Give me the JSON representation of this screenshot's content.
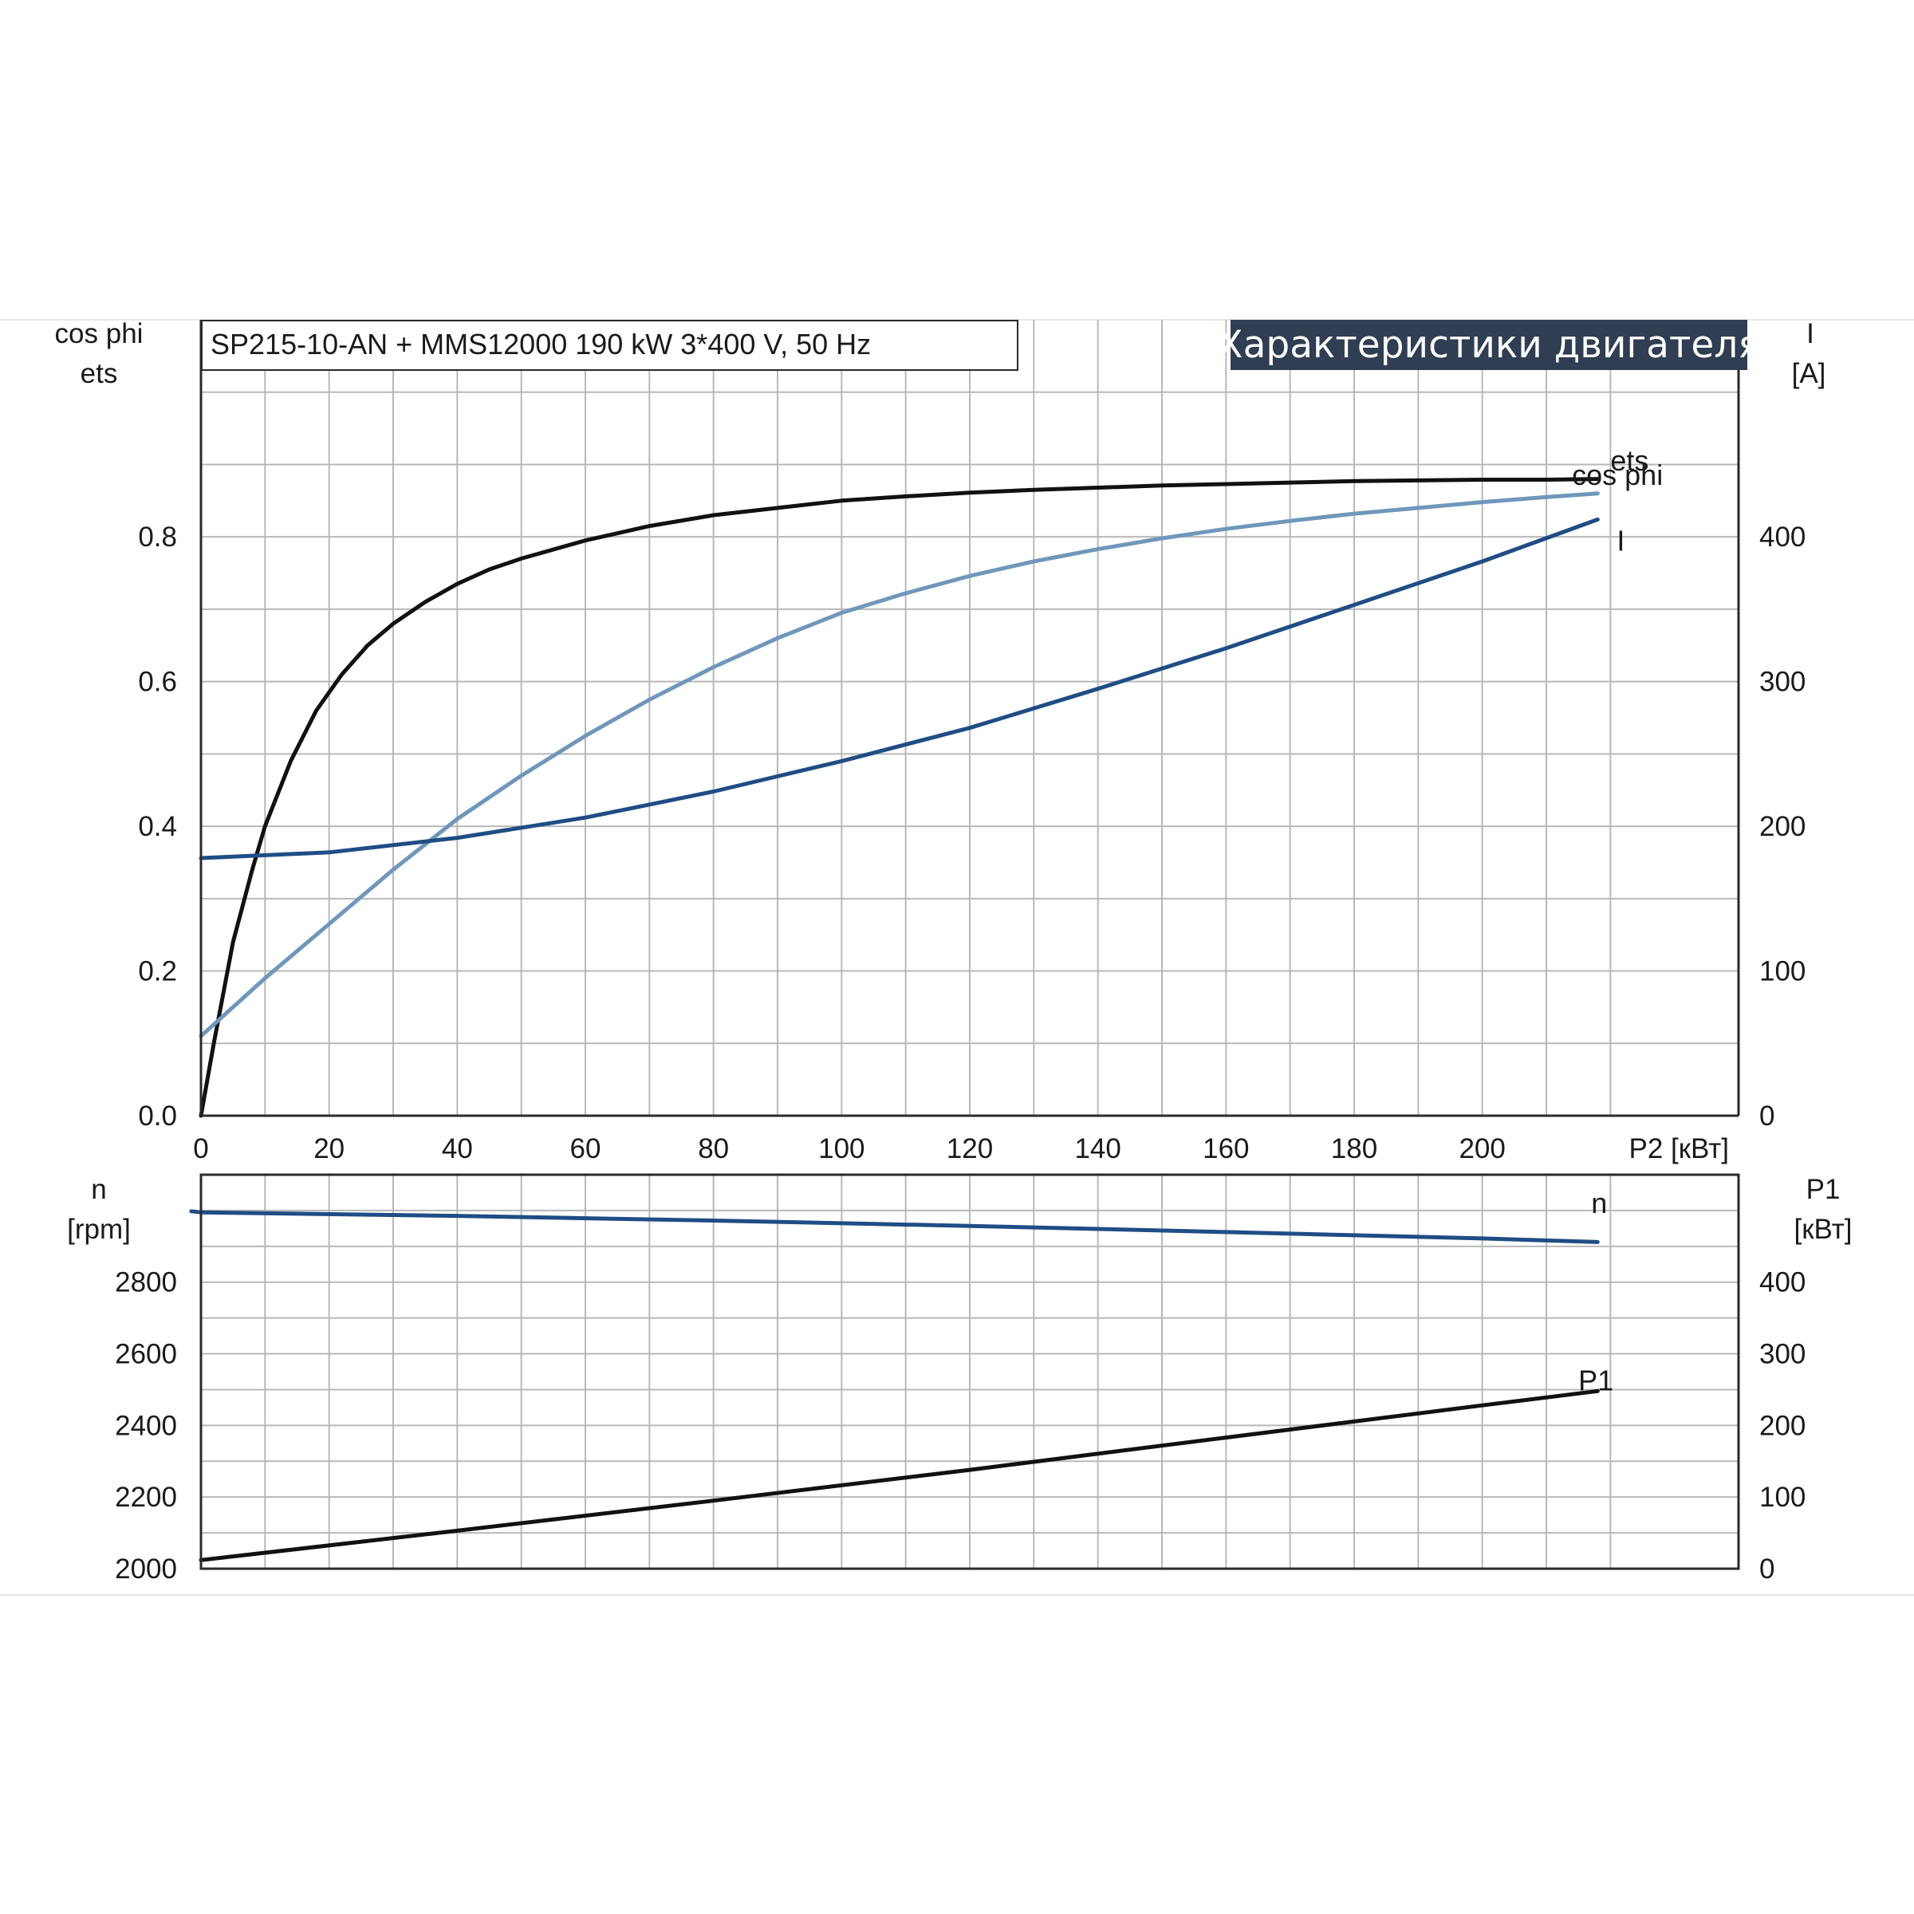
{
  "chart_data": [
    {
      "type": "line",
      "heading": "SP215-10-AN + MMS12000   190 kW   3*400 V, 50 Hz",
      "banner": "Характеристики двигателя",
      "xlabel": "P2 [кВт]",
      "xlim": [
        0,
        240
      ],
      "xticks": [
        "0",
        "20",
        "40",
        "60",
        "80",
        "100",
        "120",
        "140",
        "160",
        "180",
        "200"
      ],
      "y_left": {
        "label_lines": [
          "cos phi",
          "ets"
        ],
        "ylim": [
          0,
          1.1
        ],
        "ticks": [
          "0.0",
          "0.2",
          "0.4",
          "0.6",
          "0.8"
        ]
      },
      "y_right": {
        "label_lines": [
          "I",
          "[A]"
        ],
        "ylim": [
          0,
          550
        ],
        "ticks": [
          "0",
          "100",
          "200",
          "300",
          "400"
        ]
      },
      "grid": true,
      "series": [
        {
          "name": "ets",
          "axis": "left",
          "color": "#111111",
          "label_x": 220,
          "label_y": 0.905,
          "x": [
            0,
            2,
            5,
            8,
            10,
            14,
            18,
            22,
            26,
            30,
            35,
            40,
            45,
            50,
            60,
            70,
            80,
            90,
            100,
            110,
            120,
            130,
            140,
            150,
            160,
            170,
            180,
            190,
            200,
            210,
            218
          ],
          "y": [
            0,
            0.1,
            0.24,
            0.34,
            0.4,
            0.49,
            0.56,
            0.61,
            0.65,
            0.68,
            0.71,
            0.735,
            0.755,
            0.77,
            0.795,
            0.815,
            0.83,
            0.84,
            0.85,
            0.856,
            0.861,
            0.865,
            0.868,
            0.871,
            0.873,
            0.875,
            0.877,
            0.878,
            0.879,
            0.879,
            0.88
          ]
        },
        {
          "name": "cos phi",
          "axis": "left",
          "color": "#6f97bb",
          "label_x": 214,
          "label_y": 0.885,
          "x": [
            0,
            10,
            20,
            30,
            40,
            50,
            60,
            70,
            80,
            90,
            100,
            110,
            120,
            130,
            140,
            150,
            160,
            170,
            180,
            190,
            200,
            210,
            218
          ],
          "y": [
            0.11,
            0.19,
            0.265,
            0.34,
            0.41,
            0.47,
            0.525,
            0.575,
            0.62,
            0.66,
            0.695,
            0.722,
            0.746,
            0.766,
            0.783,
            0.798,
            0.811,
            0.822,
            0.832,
            0.84,
            0.848,
            0.855,
            0.86
          ]
        },
        {
          "name": "I",
          "axis": "right",
          "color": "#1f4d85",
          "label_x": 221,
          "label_y": 397,
          "x": [
            0,
            20,
            40,
            60,
            80,
            100,
            120,
            140,
            160,
            180,
            200,
            218
          ],
          "y": [
            178,
            182,
            192,
            206,
            224,
            245,
            268,
            295,
            323,
            353,
            383,
            412
          ]
        }
      ]
    },
    {
      "type": "line",
      "xlim": [
        0,
        240
      ],
      "y_left": {
        "label_lines": [
          "n",
          "[rpm]"
        ],
        "ylim": [
          2000,
          3100
        ],
        "ticks": [
          "2800",
          "2600",
          "2400",
          "2200",
          "2000"
        ]
      },
      "y_right": {
        "label_lines": [
          "P1",
          "[кВт]"
        ],
        "ylim": [
          0,
          550
        ],
        "ticks": [
          "400",
          "300",
          "200",
          "100",
          "0"
        ]
      },
      "grid": true,
      "series": [
        {
          "name": "n",
          "axis": "left",
          "color": "#1f4d85",
          "label_x": 217,
          "label_y": 3020,
          "x": [
            -1.5,
            0,
            40,
            80,
            120,
            160,
            200,
            218
          ],
          "y": [
            2998,
            2995,
            2985,
            2972,
            2957,
            2940,
            2922,
            2912
          ]
        },
        {
          "name": "P1",
          "axis": "right",
          "color": "#111111",
          "label_x": 215,
          "label_y": 262,
          "x": [
            0,
            40,
            80,
            120,
            160,
            200,
            218
          ],
          "y": [
            12,
            53,
            95,
            138,
            183,
            228,
            248
          ]
        }
      ]
    }
  ]
}
